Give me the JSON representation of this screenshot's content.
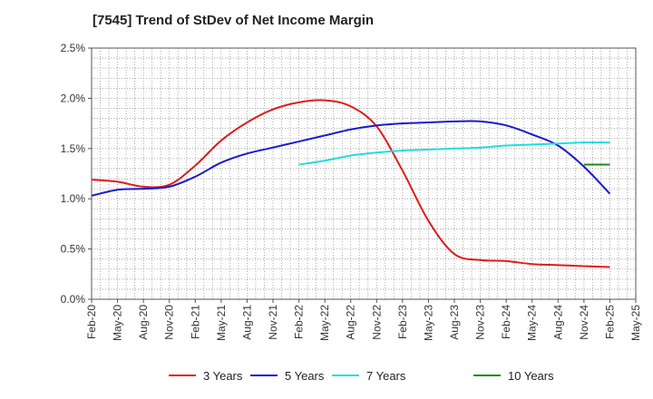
{
  "chart_data": {
    "type": "line",
    "title": "[7545]  Trend of StDev of Net Income Margin",
    "xlabel": "",
    "ylabel": "",
    "x_ticks": [
      "Feb-20",
      "May-20",
      "Aug-20",
      "Nov-20",
      "Feb-21",
      "May-21",
      "Aug-21",
      "Nov-21",
      "Feb-22",
      "May-22",
      "Aug-22",
      "Nov-22",
      "Feb-23",
      "May-23",
      "Aug-23",
      "Nov-23",
      "Feb-24",
      "May-24",
      "Aug-24",
      "Nov-24",
      "Feb-25",
      "May-25"
    ],
    "y_ticks": [
      "0.0%",
      "0.5%",
      "1.0%",
      "1.5%",
      "2.0%",
      "2.5%"
    ],
    "ylim": [
      0,
      2.5
    ],
    "grid": true,
    "legend_position": "bottom",
    "series": [
      {
        "name": "3 Years",
        "color": "#e01b1b",
        "values": [
          [
            "Feb-20",
            1.19
          ],
          [
            "May-20",
            1.17
          ],
          [
            "Aug-20",
            1.12
          ],
          [
            "Nov-20",
            1.14
          ],
          [
            "Feb-21",
            1.33
          ],
          [
            "May-21",
            1.58
          ],
          [
            "Aug-21",
            1.76
          ],
          [
            "Nov-21",
            1.89
          ],
          [
            "Feb-22",
            1.96
          ],
          [
            "May-22",
            1.98
          ],
          [
            "Aug-22",
            1.92
          ],
          [
            "Nov-22",
            1.72
          ],
          [
            "Feb-23",
            1.28
          ],
          [
            "May-23",
            0.78
          ],
          [
            "Aug-23",
            0.45
          ],
          [
            "Nov-23",
            0.39
          ],
          [
            "Feb-24",
            0.38
          ],
          [
            "May-24",
            0.35
          ],
          [
            "Aug-24",
            0.34
          ],
          [
            "Nov-24",
            0.33
          ],
          [
            "Feb-25",
            0.32
          ]
        ]
      },
      {
        "name": "5 Years",
        "color": "#1a1acf",
        "values": [
          [
            "Feb-20",
            1.03
          ],
          [
            "May-20",
            1.09
          ],
          [
            "Aug-20",
            1.1
          ],
          [
            "Nov-20",
            1.12
          ],
          [
            "Feb-21",
            1.22
          ],
          [
            "May-21",
            1.36
          ],
          [
            "Aug-21",
            1.45
          ],
          [
            "Nov-21",
            1.51
          ],
          [
            "Feb-22",
            1.57
          ],
          [
            "May-22",
            1.63
          ],
          [
            "Aug-22",
            1.69
          ],
          [
            "Nov-22",
            1.73
          ],
          [
            "Feb-23",
            1.75
          ],
          [
            "May-23",
            1.76
          ],
          [
            "Aug-23",
            1.77
          ],
          [
            "Nov-23",
            1.77
          ],
          [
            "Feb-24",
            1.73
          ],
          [
            "May-24",
            1.64
          ],
          [
            "Aug-24",
            1.53
          ],
          [
            "Nov-24",
            1.32
          ],
          [
            "Feb-25",
            1.05
          ]
        ]
      },
      {
        "name": "7 Years",
        "color": "#22dddd",
        "values": [
          [
            "Feb-22",
            1.34
          ],
          [
            "May-22",
            1.38
          ],
          [
            "Aug-22",
            1.43
          ],
          [
            "Nov-22",
            1.46
          ],
          [
            "Feb-23",
            1.48
          ],
          [
            "May-23",
            1.49
          ],
          [
            "Aug-23",
            1.5
          ],
          [
            "Nov-23",
            1.51
          ],
          [
            "Feb-24",
            1.53
          ],
          [
            "May-24",
            1.54
          ],
          [
            "Aug-24",
            1.55
          ],
          [
            "Nov-24",
            1.56
          ],
          [
            "Feb-25",
            1.56
          ]
        ]
      },
      {
        "name": "10 Years",
        "color": "#1a8a1a",
        "values": [
          [
            "Nov-24",
            1.34
          ],
          [
            "Feb-25",
            1.34
          ]
        ]
      }
    ]
  }
}
